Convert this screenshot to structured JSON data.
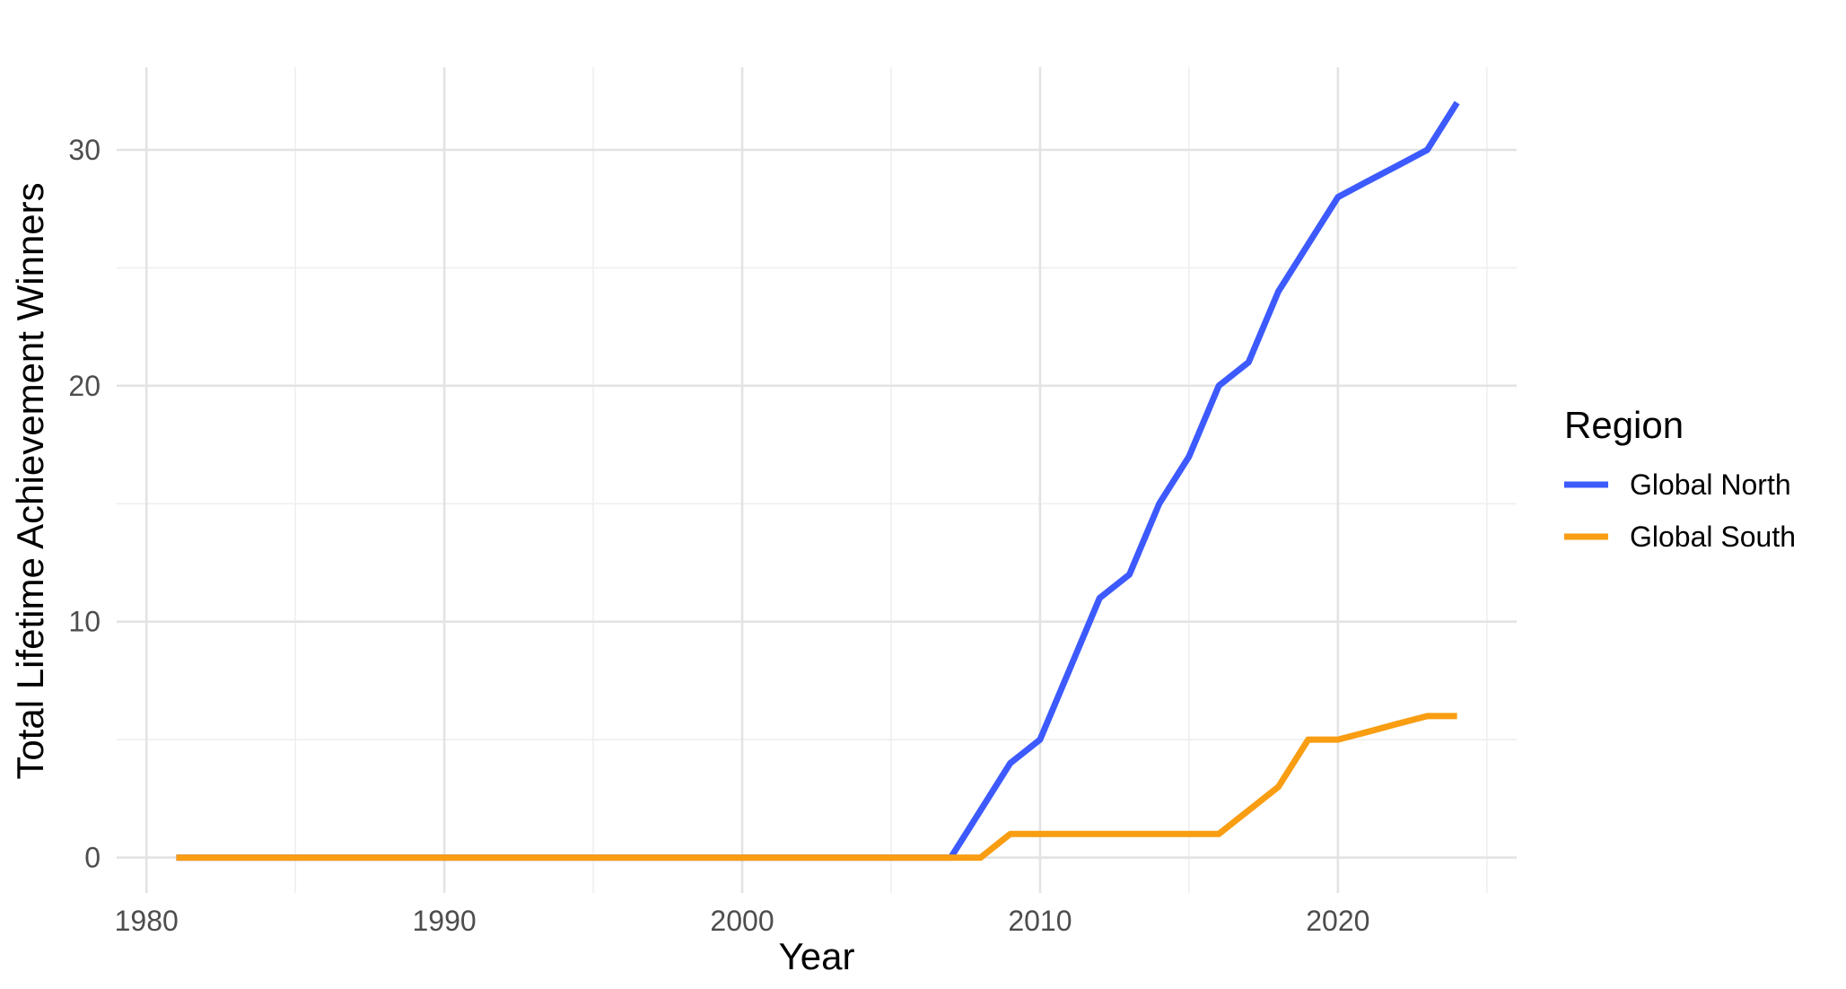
{
  "chart_data": {
    "type": "line",
    "xlabel": "Year",
    "ylabel": "Total Lifetime Achievement Winners",
    "xlim": [
      1979,
      2026
    ],
    "ylim": [
      -1.5,
      33.5
    ],
    "x_ticks": [
      1980,
      1990,
      2000,
      2010,
      2020
    ],
    "x_minor_ticks": [
      1985,
      1995,
      2005,
      2015,
      2025
    ],
    "y_ticks": [
      0,
      10,
      20,
      30
    ],
    "y_minor_ticks": [
      5,
      15,
      25
    ],
    "grid": true,
    "legend": {
      "title": "Region",
      "position": "right"
    },
    "series": [
      {
        "name": "Global North",
        "color": "#3d5afe",
        "x": [
          1981,
          2007,
          2008,
          2009,
          2010,
          2011,
          2012,
          2013,
          2014,
          2015,
          2016,
          2017,
          2018,
          2019,
          2020,
          2021,
          2022,
          2023,
          2024
        ],
        "y": [
          0,
          0,
          2,
          4,
          5,
          8,
          11,
          12,
          15,
          17,
          20,
          21,
          24,
          26,
          28,
          28.67,
          29.33,
          30,
          32
        ]
      },
      {
        "name": "Global South",
        "color": "#f99d12",
        "x": [
          1981,
          2008,
          2009,
          2010,
          2011,
          2012,
          2013,
          2014,
          2015,
          2016,
          2017,
          2018,
          2019,
          2020,
          2021,
          2022,
          2023,
          2024
        ],
        "y": [
          0,
          0,
          1,
          1,
          1,
          1,
          1,
          1,
          1,
          1,
          2,
          3,
          5,
          5,
          5.33,
          5.67,
          6,
          6
        ]
      }
    ]
  }
}
